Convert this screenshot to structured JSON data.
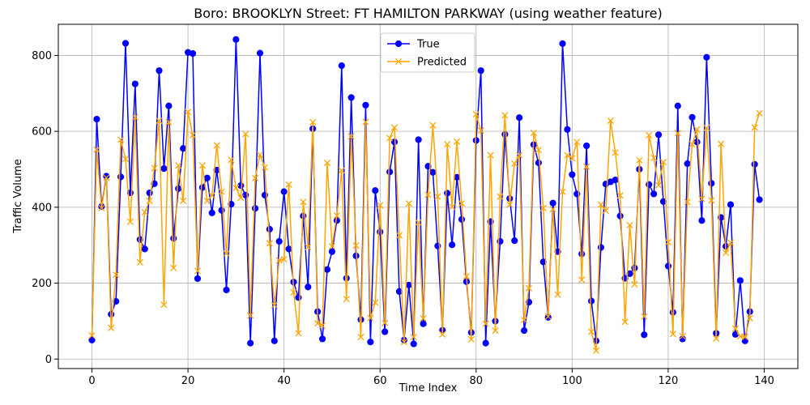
{
  "chart_data": {
    "type": "line",
    "title": "Boro: BROOKLYN Street: FT HAMILTON PARKWAY (using weather feature)",
    "xlabel": "Time Index",
    "ylabel": "Traffic Volume",
    "xlim": [
      -7,
      147
    ],
    "ylim": [
      -25,
      882
    ],
    "xticks": [
      0,
      20,
      40,
      60,
      80,
      100,
      120,
      140
    ],
    "yticks": [
      0,
      200,
      400,
      600,
      800
    ],
    "grid": true,
    "legend": {
      "position": "top-center"
    },
    "series": [
      {
        "name": "True",
        "color": "#0000ff",
        "marker": "circle",
        "values": [
          50,
          632,
          402,
          482,
          118,
          152,
          480,
          832,
          438,
          725,
          315,
          290,
          438,
          462,
          760,
          502,
          667,
          318,
          449,
          555,
          808,
          805,
          212,
          452,
          477,
          385,
          498,
          392,
          182,
          408,
          842,
          457,
          432,
          42,
          397,
          806,
          432,
          342,
          48,
          310,
          441,
          290,
          203,
          162,
          377,
          190,
          607,
          125,
          53,
          236,
          283,
          365,
          773,
          213,
          689,
          272,
          104,
          669,
          45,
          444,
          335,
          72,
          493,
          572,
          178,
          50,
          195,
          40,
          578,
          93,
          508,
          492,
          298,
          76,
          437,
          301,
          479,
          368,
          204,
          70,
          576,
          760,
          42,
          362,
          100,
          310,
          592,
          423,
          312,
          636,
          75,
          150,
          565,
          517,
          256,
          110,
          411,
          283,
          831,
          605,
          486,
          435,
          277,
          562,
          153,
          48,
          294,
          461,
          467,
          472,
          377,
          213,
          225,
          240,
          500,
          64,
          460,
          435,
          591,
          415,
          245,
          123,
          667,
          53,
          515,
          637,
          572,
          365,
          795,
          463,
          68,
          373,
          297,
          407,
          65,
          207,
          48,
          125,
          513,
          420
        ]
      },
      {
        "name": "Predicted",
        "color": "#ffa500",
        "marker": "x",
        "values": [
          62,
          552,
          398,
          478,
          82,
          222,
          578,
          527,
          362,
          637,
          255,
          387,
          417,
          503,
          628,
          143,
          624,
          240,
          510,
          417,
          651,
          590,
          232,
          510,
          417,
          431,
          563,
          441,
          278,
          525,
          451,
          425,
          593,
          115,
          477,
          538,
          505,
          305,
          142,
          260,
          263,
          460,
          176,
          68,
          414,
          295,
          624,
          94,
          88,
          517,
          297,
          378,
          497,
          158,
          587,
          299,
          58,
          625,
          108,
          149,
          405,
          95,
          582,
          610,
          326,
          45,
          410,
          58,
          360,
          107,
          433,
          616,
          428,
          65,
          566,
          401,
          573,
          410,
          218,
          52,
          645,
          602,
          93,
          537,
          75,
          428,
          642,
          407,
          515,
          537,
          103,
          187,
          596,
          551,
          398,
          112,
          395,
          170,
          441,
          537,
          529,
          572,
          209,
          507,
          72,
          22,
          407,
          391,
          628,
          544,
          431,
          98,
          353,
          197,
          524,
          112,
          590,
          530,
          458,
          519,
          308,
          66,
          595,
          60,
          414,
          566,
          605,
          422,
          609,
          418,
          54,
          567,
          280,
          307,
          80,
          60,
          58,
          108,
          610,
          648
        ]
      }
    ]
  }
}
